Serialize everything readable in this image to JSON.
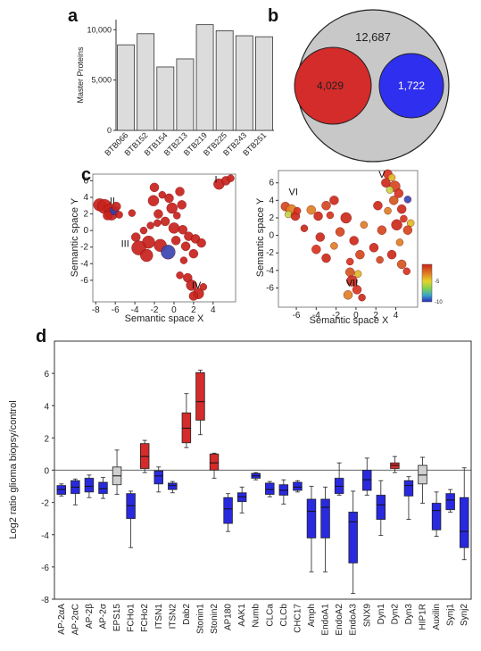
{
  "panels": {
    "a": "a",
    "b": "b",
    "c": "c",
    "d": "d"
  },
  "chart_data": [
    {
      "id": "a",
      "type": "bar",
      "ylabel": "Master Proteins",
      "ylim": [
        0,
        11000
      ],
      "yticks": [
        0,
        5000,
        10000
      ],
      "ytick_labels": [
        "0",
        "5,000",
        "10,000"
      ],
      "categories": [
        "BTB066",
        "BTB152",
        "BTB154",
        "BTB213",
        "BTB219",
        "BTB225",
        "BTB243",
        "BTB251"
      ],
      "values": [
        8500,
        9600,
        6300,
        7100,
        10500,
        9900,
        9400,
        9300
      ],
      "colors": {
        "bar": "#dcdcdc",
        "edge": "#333333"
      }
    },
    {
      "id": "b",
      "type": "venn",
      "sets": [
        {
          "value": "12,687",
          "color": "#c8c8c8"
        },
        {
          "value": "4,029",
          "color": "#d42b2b"
        },
        {
          "value": "1,722",
          "color": "#2f2ff0"
        }
      ]
    },
    {
      "id": "c-left",
      "type": "scatter",
      "xlabel": "Semantic space X",
      "ylabel": "Semantic space Y",
      "xlim": [
        -8.3,
        6.3
      ],
      "ylim": [
        -8.6,
        6.8
      ],
      "xticks": [
        -8,
        -6,
        -4,
        -2,
        0,
        2,
        4
      ],
      "yticks": [
        -6,
        -4,
        -2,
        0,
        2,
        4,
        6
      ],
      "clusters": [
        "I",
        "II",
        "III",
        "IV"
      ],
      "cluster_positions": [
        [
          4.3,
          5.8
        ],
        [
          -6.3,
          3.2
        ],
        [
          -5.0,
          -2.0
        ],
        [
          2.3,
          -7.0
        ]
      ],
      "points": [
        {
          "x": -7.6,
          "y": 3.1,
          "s": 7,
          "c": "#c8221c"
        },
        {
          "x": -7.1,
          "y": 2.9,
          "s": 8,
          "c": "#c8221c"
        },
        {
          "x": -6.6,
          "y": 2.6,
          "s": 6,
          "c": "#c8221c"
        },
        {
          "x": -6.4,
          "y": 2.0,
          "s": 7,
          "c": "#c8221c"
        },
        {
          "x": -6.1,
          "y": 2.4,
          "s": 5,
          "c": "#2f3fa8"
        },
        {
          "x": -5.9,
          "y": 2.9,
          "s": 5,
          "c": "#c8221c"
        },
        {
          "x": -6.8,
          "y": 1.8,
          "s": 5,
          "c": "#c8221c"
        },
        {
          "x": -5.6,
          "y": 1.9,
          "s": 4,
          "c": "#c8221c"
        },
        {
          "x": -4.3,
          "y": 2.1,
          "s": 4,
          "c": "#c8221c"
        },
        {
          "x": -2.0,
          "y": 5.2,
          "s": 5,
          "c": "#c8221c"
        },
        {
          "x": -1.2,
          "y": 4.3,
          "s": 4,
          "c": "#c8221c"
        },
        {
          "x": -2.1,
          "y": 3.6,
          "s": 6,
          "c": "#c8221c"
        },
        {
          "x": -0.5,
          "y": 3.9,
          "s": 5,
          "c": "#c8221c"
        },
        {
          "x": 0.6,
          "y": 4.7,
          "s": 5,
          "c": "#c8221c"
        },
        {
          "x": -0.2,
          "y": 2.7,
          "s": 6,
          "c": "#c8221c"
        },
        {
          "x": 0.8,
          "y": 3.1,
          "s": 5,
          "c": "#c8221c"
        },
        {
          "x": -1.6,
          "y": 2.0,
          "s": 5,
          "c": "#c8221c"
        },
        {
          "x": -0.9,
          "y": 1.1,
          "s": 5,
          "c": "#c8221c"
        },
        {
          "x": 0.0,
          "y": 0.3,
          "s": 6,
          "c": "#c8221c"
        },
        {
          "x": -2.4,
          "y": 0.6,
          "s": 4,
          "c": "#c8221c"
        },
        {
          "x": -3.1,
          "y": 0.0,
          "s": 4,
          "c": "#c8221c"
        },
        {
          "x": -3.9,
          "y": -0.8,
          "s": 5,
          "c": "#c8221c"
        },
        {
          "x": -2.6,
          "y": -1.4,
          "s": 7,
          "c": "#c8221c"
        },
        {
          "x": -1.4,
          "y": -1.8,
          "s": 7,
          "c": "#c8221c"
        },
        {
          "x": -3.6,
          "y": -2.1,
          "s": 8,
          "c": "#c8221c"
        },
        {
          "x": -2.8,
          "y": -3.0,
          "s": 7,
          "c": "#c8221c"
        },
        {
          "x": -0.6,
          "y": -2.6,
          "s": 8,
          "c": "#3a44b0"
        },
        {
          "x": 0.2,
          "y": -1.2,
          "s": 5,
          "c": "#c8221c"
        },
        {
          "x": 0.9,
          "y": 0.1,
          "s": 5,
          "c": "#c8221c"
        },
        {
          "x": 1.5,
          "y": -0.7,
          "s": 5,
          "c": "#c8221c"
        },
        {
          "x": 1.2,
          "y": -1.9,
          "s": 5,
          "c": "#c8221c"
        },
        {
          "x": 2.2,
          "y": -1.0,
          "s": 5,
          "c": "#c8221c"
        },
        {
          "x": 2.8,
          "y": -1.5,
          "s": 5,
          "c": "#c8221c"
        },
        {
          "x": 2.0,
          "y": -2.8,
          "s": 5,
          "c": "#c8221c"
        },
        {
          "x": 1.0,
          "y": -3.6,
          "s": 4,
          "c": "#c8221c"
        },
        {
          "x": 0.6,
          "y": -5.4,
          "s": 4,
          "c": "#c8221c"
        },
        {
          "x": 1.4,
          "y": -5.7,
          "s": 5,
          "c": "#c8221c"
        },
        {
          "x": 1.8,
          "y": -6.6,
          "s": 6,
          "c": "#c8221c"
        },
        {
          "x": 2.5,
          "y": -7.6,
          "s": 6,
          "c": "#c8221c"
        },
        {
          "x": 2.0,
          "y": -7.9,
          "s": 5,
          "c": "#c8221c"
        },
        {
          "x": 3.0,
          "y": -6.8,
          "s": 4,
          "c": "#c8221c"
        },
        {
          "x": 4.6,
          "y": 5.6,
          "s": 6,
          "c": "#c8221c"
        },
        {
          "x": 5.3,
          "y": 6.0,
          "s": 5,
          "c": "#c8221c"
        },
        {
          "x": 5.8,
          "y": 6.3,
          "s": 4,
          "c": "#c8221c"
        },
        {
          "x": -1.7,
          "y": 0.9,
          "s": 4,
          "c": "#c8221c"
        },
        {
          "x": 0.3,
          "y": 1.8,
          "s": 4,
          "c": "#c8221c"
        }
      ]
    },
    {
      "id": "c-right",
      "type": "scatter",
      "xlabel": "Semantic space X",
      "ylabel": "Semantic space Y",
      "xlim": [
        -7.8,
        6.2
      ],
      "ylim": [
        -8.2,
        7.4
      ],
      "xticks": [
        -6,
        -4,
        -2,
        0,
        2,
        4
      ],
      "yticks": [
        -6,
        -4,
        -2,
        0,
        2,
        4,
        6
      ],
      "clusters": [
        "V",
        "VI",
        "VII"
      ],
      "cluster_positions": [
        [
          2.6,
          6.6
        ],
        [
          -6.3,
          4.6
        ],
        [
          -0.4,
          -5.8
        ]
      ],
      "colorbar": {
        "min": -10,
        "max": 0,
        "ticks": [
          "-5",
          "-10"
        ]
      },
      "points": [
        {
          "x": 3.2,
          "y": 7.0,
          "s": 5,
          "c": "#d7331f"
        },
        {
          "x": 3.6,
          "y": 6.6,
          "s": 4,
          "c": "#e1b826"
        },
        {
          "x": 3.0,
          "y": 6.0,
          "s": 5,
          "c": "#cc2a1c"
        },
        {
          "x": 3.9,
          "y": 5.6,
          "s": 6,
          "c": "#d4461f"
        },
        {
          "x": 3.4,
          "y": 5.2,
          "s": 4,
          "c": "#c1d94a"
        },
        {
          "x": 4.3,
          "y": 4.8,
          "s": 5,
          "c": "#d7331f"
        },
        {
          "x": 3.8,
          "y": 4.0,
          "s": 5,
          "c": "#d4561f"
        },
        {
          "x": 5.2,
          "y": 4.1,
          "s": 4,
          "c": "#3b46b5"
        },
        {
          "x": 4.6,
          "y": 3.0,
          "s": 5,
          "c": "#cc2a1c"
        },
        {
          "x": 3.2,
          "y": 2.8,
          "s": 4,
          "c": "#e07f24"
        },
        {
          "x": 4.8,
          "y": 1.9,
          "s": 4,
          "c": "#d7331f"
        },
        {
          "x": 5.5,
          "y": 1.4,
          "s": 4,
          "c": "#e1b826"
        },
        {
          "x": 4.1,
          "y": 1.2,
          "s": 6,
          "c": "#cc2a1c"
        },
        {
          "x": 5.2,
          "y": 0.6,
          "s": 5,
          "c": "#d4461f"
        },
        {
          "x": 4.4,
          "y": -0.8,
          "s": 4,
          "c": "#e07f24"
        },
        {
          "x": 3.6,
          "y": -2.2,
          "s": 5,
          "c": "#cc2a1c"
        },
        {
          "x": 4.6,
          "y": -3.3,
          "s": 5,
          "c": "#d4561f"
        },
        {
          "x": 5.1,
          "y": -4.1,
          "s": 4,
          "c": "#d7331f"
        },
        {
          "x": -7.1,
          "y": 3.3,
          "s": 5,
          "c": "#d4461f"
        },
        {
          "x": -6.5,
          "y": 2.9,
          "s": 6,
          "c": "#e07f24"
        },
        {
          "x": -6.8,
          "y": 2.4,
          "s": 4,
          "c": "#c1d94a"
        },
        {
          "x": -6.1,
          "y": 2.2,
          "s": 5,
          "c": "#cc2a1c"
        },
        {
          "x": -5.9,
          "y": 2.8,
          "s": 4,
          "c": "#d7331f"
        },
        {
          "x": -4.5,
          "y": 2.9,
          "s": 5,
          "c": "#e07f24"
        },
        {
          "x": -3.8,
          "y": 2.2,
          "s": 5,
          "c": "#cc2a1c"
        },
        {
          "x": -3.0,
          "y": 3.4,
          "s": 5,
          "c": "#d4461f"
        },
        {
          "x": -2.2,
          "y": 4.0,
          "s": 5,
          "c": "#cc2a1c"
        },
        {
          "x": -2.6,
          "y": 2.3,
          "s": 4,
          "c": "#d7331f"
        },
        {
          "x": -1.0,
          "y": 2.0,
          "s": 6,
          "c": "#cc2a1c"
        },
        {
          "x": -1.6,
          "y": 0.4,
          "s": 5,
          "c": "#d4461f"
        },
        {
          "x": -3.6,
          "y": -0.2,
          "s": 5,
          "c": "#cc2a1c"
        },
        {
          "x": -2.2,
          "y": -1.2,
          "s": 4,
          "c": "#e07f24"
        },
        {
          "x": -4.0,
          "y": -1.6,
          "s": 5,
          "c": "#d7331f"
        },
        {
          "x": -3.0,
          "y": -2.6,
          "s": 5,
          "c": "#cc2a1c"
        },
        {
          "x": -0.2,
          "y": -0.6,
          "s": 5,
          "c": "#cc2a1c"
        },
        {
          "x": 0.4,
          "y": -2.2,
          "s": 5,
          "c": "#d4461f"
        },
        {
          "x": -0.6,
          "y": -3.0,
          "s": 4,
          "c": "#d7331f"
        },
        {
          "x": 1.8,
          "y": -1.4,
          "s": 5,
          "c": "#cc2a1c"
        },
        {
          "x": 2.6,
          "y": 0.6,
          "s": 5,
          "c": "#d4461f"
        },
        {
          "x": 0.8,
          "y": 1.2,
          "s": 4,
          "c": "#e07f24"
        },
        {
          "x": 2.2,
          "y": 3.4,
          "s": 5,
          "c": "#cc2a1c"
        },
        {
          "x": -0.6,
          "y": -4.2,
          "s": 5,
          "c": "#d4561f"
        },
        {
          "x": 0.2,
          "y": -4.4,
          "s": 4,
          "c": "#e1b826"
        },
        {
          "x": -0.4,
          "y": -5.2,
          "s": 6,
          "c": "#cc2a1c"
        },
        {
          "x": 0.1,
          "y": -6.2,
          "s": 5,
          "c": "#d7331f"
        },
        {
          "x": -0.8,
          "y": -6.8,
          "s": 5,
          "c": "#e07f24"
        },
        {
          "x": 0.6,
          "y": -7.1,
          "s": 4,
          "c": "#cc2a1c"
        },
        {
          "x": 2.4,
          "y": -2.8,
          "s": 4,
          "c": "#d4461f"
        },
        {
          "x": -5.2,
          "y": 0.8,
          "s": 4,
          "c": "#cc2a1c"
        }
      ]
    },
    {
      "id": "d",
      "type": "box",
      "ylabel": "Log2 ratio glioma biopsy/control",
      "ylim": [
        -8,
        8
      ],
      "yticks": [
        -8,
        -6,
        -4,
        -2,
        0,
        2,
        4,
        6
      ],
      "colors": {
        "down": "#2929e0",
        "up": "#d42b2b",
        "ns": "#cfcfcf"
      },
      "boxes": [
        {
          "label": "AP-2αA",
          "min": -1.6,
          "q1": -1.5,
          "median": -1.2,
          "q3": -0.95,
          "max": -0.85,
          "color": "down"
        },
        {
          "label": "AP-2αC",
          "min": -2.15,
          "q1": -1.45,
          "median": -1.05,
          "q3": -0.65,
          "max": -0.55,
          "color": "down"
        },
        {
          "label": "AP-2β",
          "min": -1.7,
          "q1": -1.35,
          "median": -1.0,
          "q3": -0.5,
          "max": -0.3,
          "color": "down"
        },
        {
          "label": "AP-2σ",
          "min": -1.75,
          "q1": -1.45,
          "median": -1.15,
          "q3": -0.75,
          "max": -0.45,
          "color": "down"
        },
        {
          "label": "EPS15",
          "min": -1.5,
          "q1": -0.9,
          "median": -0.35,
          "q3": 0.2,
          "max": 1.25,
          "color": "ns"
        },
        {
          "label": "FCHo1",
          "min": -4.8,
          "q1": -3.0,
          "median": -2.2,
          "q3": -1.45,
          "max": -1.3,
          "color": "down"
        },
        {
          "label": "FCHo2",
          "min": -0.15,
          "q1": 0.1,
          "median": 0.85,
          "q3": 1.65,
          "max": 1.85,
          "color": "up"
        },
        {
          "label": "ITSN1",
          "min": -1.35,
          "q1": -0.85,
          "median": -0.35,
          "q3": -0.05,
          "max": 0.2,
          "color": "down"
        },
        {
          "label": "ITSN2",
          "min": -1.4,
          "q1": -1.2,
          "median": -0.95,
          "q3": -0.8,
          "max": -0.7,
          "color": "down"
        },
        {
          "label": "Dab2",
          "min": 1.4,
          "q1": 1.7,
          "median": 2.6,
          "q3": 3.55,
          "max": 4.75,
          "color": "up"
        },
        {
          "label": "Stonin1",
          "min": 2.2,
          "q1": 3.1,
          "median": 4.25,
          "q3": 6.05,
          "max": 6.2,
          "color": "up"
        },
        {
          "label": "Stonin2",
          "min": -0.5,
          "q1": 0.0,
          "median": 0.45,
          "q3": 1.0,
          "max": 1.05,
          "color": "up"
        },
        {
          "label": "AP180",
          "min": -3.8,
          "q1": -3.3,
          "median": -2.4,
          "q3": -1.7,
          "max": -1.45,
          "color": "down"
        },
        {
          "label": "AAK1",
          "min": -2.65,
          "q1": -1.95,
          "median": -1.65,
          "q3": -1.4,
          "max": -1.05,
          "color": "down"
        },
        {
          "label": "Numb",
          "min": -0.6,
          "q1": -0.5,
          "median": -0.35,
          "q3": -0.2,
          "max": -0.15,
          "color": "down"
        },
        {
          "label": "CLCa",
          "min": -1.65,
          "q1": -1.5,
          "median": -1.2,
          "q3": -0.8,
          "max": -0.7,
          "color": "down"
        },
        {
          "label": "CLCb",
          "min": -2.1,
          "q1": -1.55,
          "median": -1.25,
          "q3": -0.9,
          "max": -0.6,
          "color": "down"
        },
        {
          "label": "CHC17",
          "min": -1.35,
          "q1": -1.25,
          "median": -1.05,
          "q3": -0.75,
          "max": -0.65,
          "color": "down"
        },
        {
          "label": "Amph",
          "min": -6.3,
          "q1": -4.2,
          "median": -2.55,
          "q3": -1.8,
          "max": -1.0,
          "color": "down"
        },
        {
          "label": "EndoA1",
          "min": -6.3,
          "q1": -4.2,
          "median": -2.3,
          "q3": -1.8,
          "max": -1.05,
          "color": "down"
        },
        {
          "label": "EndoA2",
          "min": -1.55,
          "q1": -1.45,
          "median": -1.0,
          "q3": -0.5,
          "max": 0.45,
          "color": "down"
        },
        {
          "label": "EndoA3",
          "min": -7.65,
          "q1": -5.75,
          "median": -3.2,
          "q3": -2.6,
          "max": -1.3,
          "color": "down"
        },
        {
          "label": "SNX9",
          "min": -1.55,
          "q1": -1.25,
          "median": -0.6,
          "q3": 0.0,
          "max": 0.75,
          "color": "down"
        },
        {
          "label": "Dyn1",
          "min": -4.05,
          "q1": -3.05,
          "median": -2.15,
          "q3": -1.55,
          "max": -0.65,
          "color": "down"
        },
        {
          "label": "Dyn2",
          "min": -0.15,
          "q1": 0.1,
          "median": 0.3,
          "q3": 0.45,
          "max": 0.85,
          "color": "up"
        },
        {
          "label": "Dyn3",
          "min": -3.05,
          "q1": -1.6,
          "median": -0.95,
          "q3": -0.65,
          "max": -0.4,
          "color": "down"
        },
        {
          "label": "HIP1R",
          "min": -2.05,
          "q1": -0.85,
          "median": -0.3,
          "q3": 0.3,
          "max": 0.8,
          "color": "ns"
        },
        {
          "label": "Auxilin",
          "min": -4.1,
          "q1": -3.7,
          "median": -2.5,
          "q3": -2.05,
          "max": -1.35,
          "color": "down"
        },
        {
          "label": "Synj1",
          "min": -2.6,
          "q1": -2.45,
          "median": -1.85,
          "q3": -1.45,
          "max": -1.2,
          "color": "down"
        },
        {
          "label": "Synj2",
          "min": -5.55,
          "q1": -4.8,
          "median": -3.8,
          "q3": -1.7,
          "max": 0.15,
          "color": "down"
        }
      ]
    }
  ]
}
